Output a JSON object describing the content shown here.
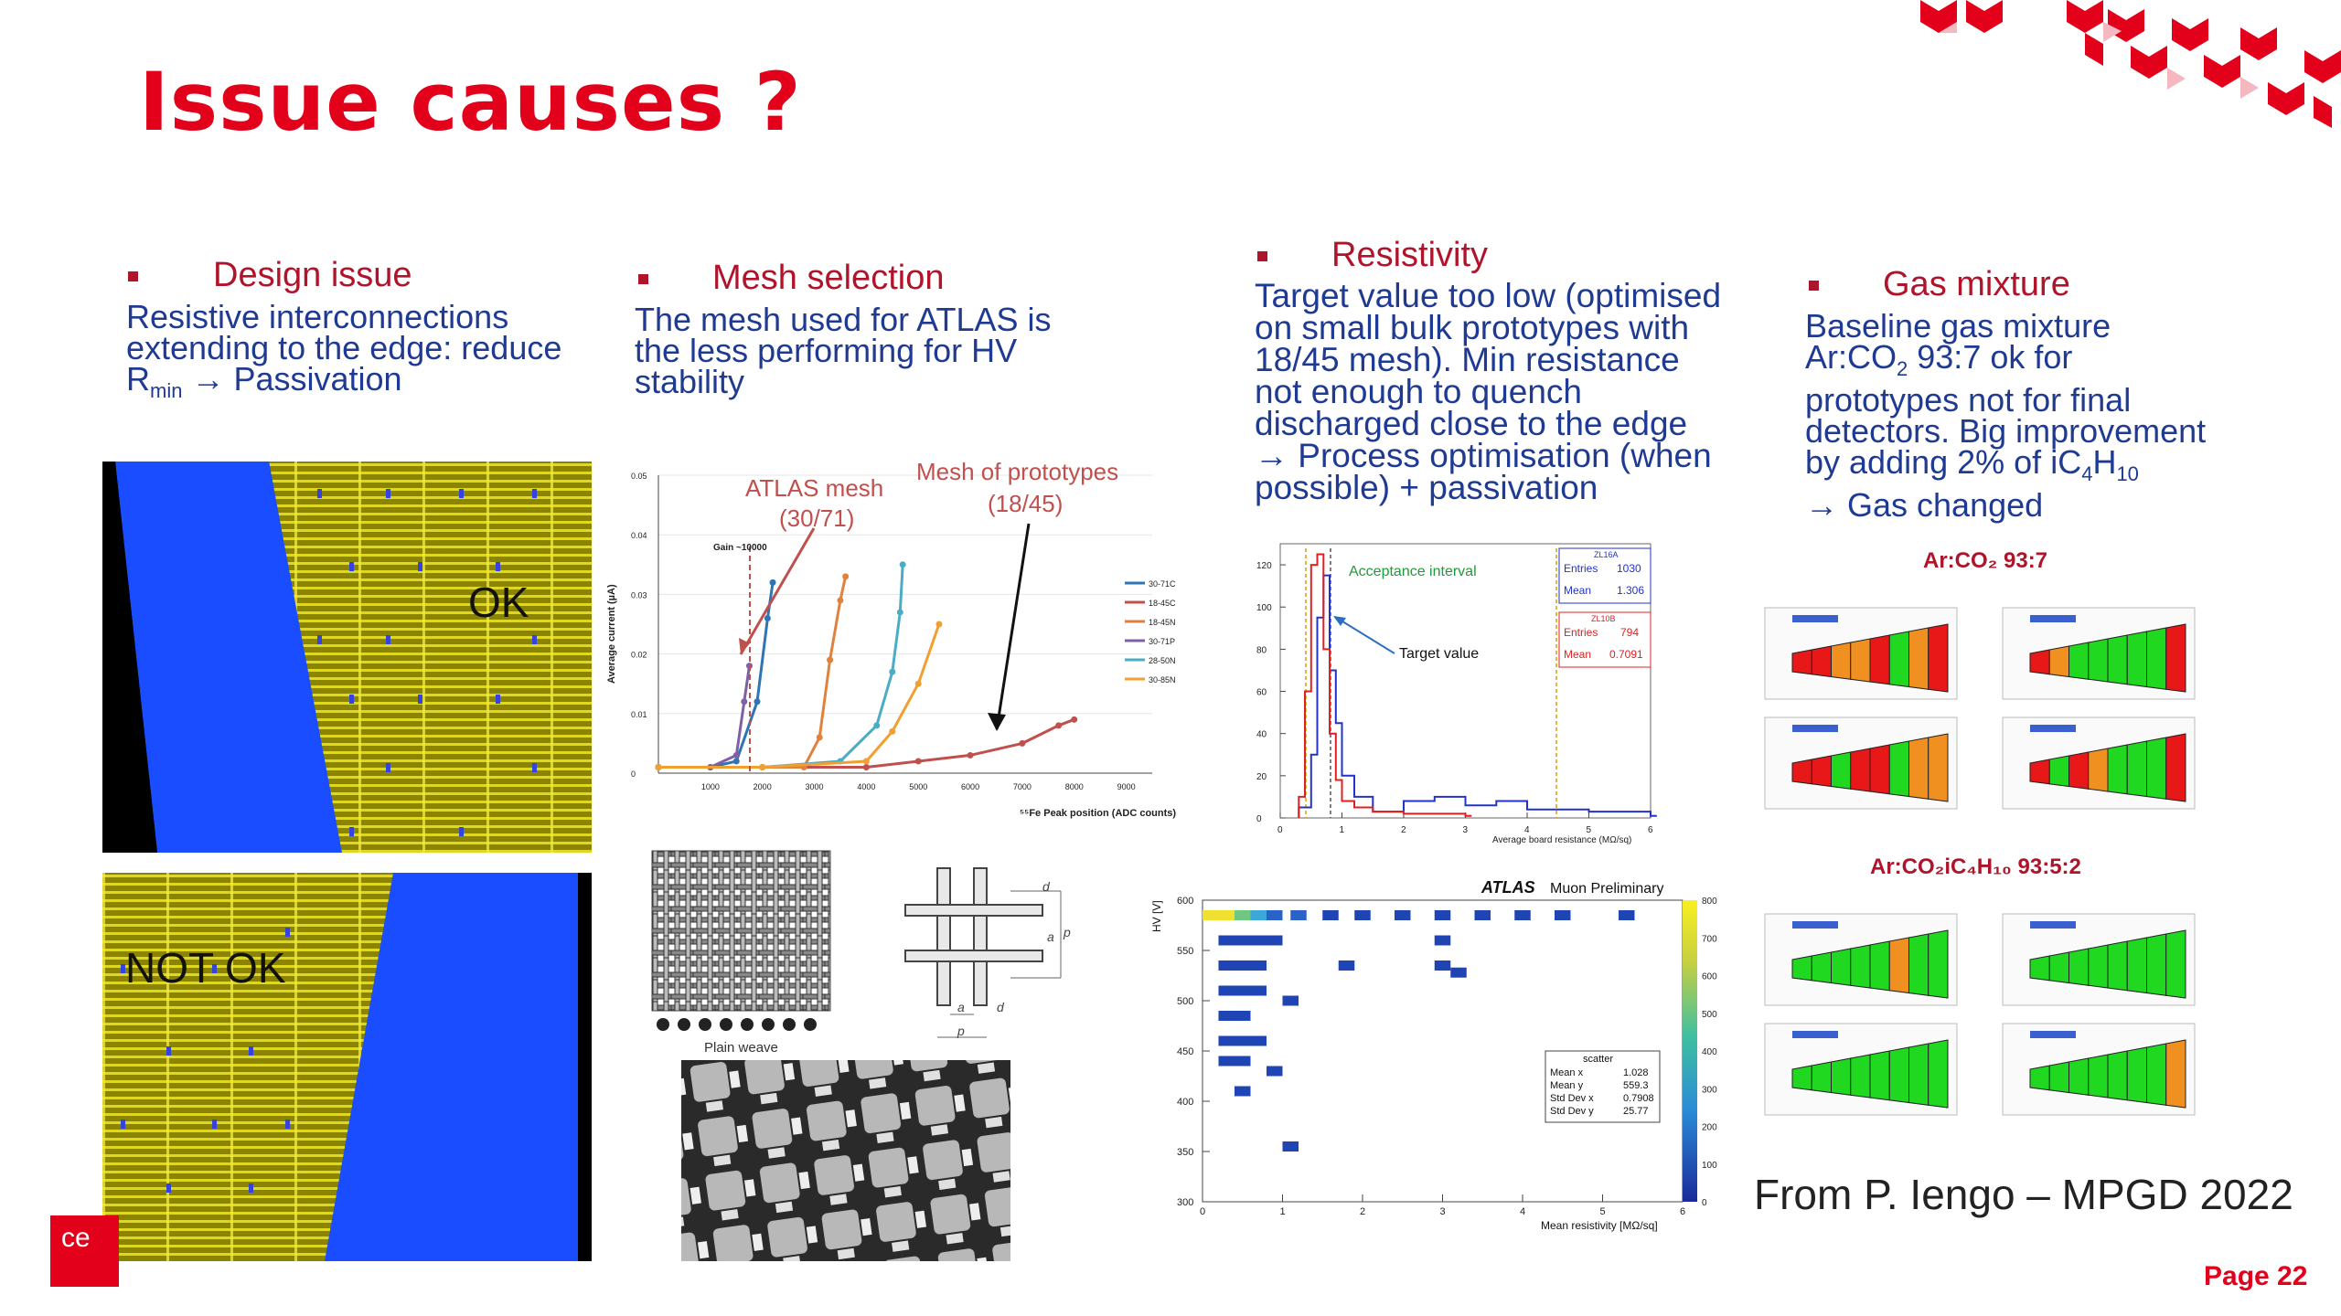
{
  "slide": {
    "title": "Issue causes ?",
    "page_label": "Page 22",
    "credit": "From P. Iengo – MPGD 2022",
    "logo_text": "ce"
  },
  "sections": {
    "design": {
      "heading": "Design issue",
      "lines": [
        "Resistive interconnections",
        "extending to the edge: reduce"
      ],
      "rmin_main": "R",
      "rmin_sub": "min",
      "rmin_tail": " → Passivation",
      "label_ok": "OK",
      "label_not_ok": "NOT OK"
    },
    "mesh": {
      "heading": "Mesh selection",
      "lines": [
        "The mesh used for ATLAS is",
        "the less performing for HV",
        "stability"
      ],
      "weave_caption": "Plain weave"
    },
    "resistivity": {
      "heading": "Resistivity",
      "lines": [
        "Target value too low (optimised",
        "on small bulk prototypes with",
        "18/45 mesh). Min resistance",
        "not enough to quench",
        "discharged close to the edge",
        "→ Process optimisation (when",
        "possible) + passivation"
      ]
    },
    "gas": {
      "heading": "Gas mixture",
      "line1": "Baseline gas mixture",
      "line2_a": "Ar:CO",
      "line2_b": "2",
      "line2_c": " 93:7 ok for",
      "line3": "prototypes not for final",
      "line4": "detectors. Big improvement",
      "line5_a": "by adding 2% of iC",
      "line5_b": "4",
      "line5_c": "H",
      "line5_d": "10",
      "line6": "→ Gas changed",
      "label_a": "Ar:CO₂ 93:7",
      "label_b": "Ar:CO₂iC₄H₁₀ 93:5:2"
    }
  },
  "figures": {
    "mesh_plot": {
      "annot_atlas": [
        "ATLAS mesh",
        "(30/71)"
      ],
      "annot_proto": [
        "Mesh of prototypes",
        "(18/45)"
      ],
      "gain_label": "Gain ~10000",
      "ylabel": "Average current (µA)",
      "xlabel": "⁵⁵Fe Peak position (ADC counts)",
      "yticks": [
        "0.05",
        "0.04",
        "0.03",
        "0.02",
        "0.01",
        "0"
      ],
      "xticks": [
        "1000",
        "2000",
        "3000",
        "4000",
        "5000",
        "6000",
        "7000",
        "8000",
        "9000"
      ],
      "legend": [
        "30-71C",
        "18-45C",
        "18-45N",
        "30-71P",
        "28-50N",
        "30-85N"
      ],
      "legend_colors": [
        "#2e75b6",
        "#c0504d",
        "#e0823d",
        "#7f5fa6",
        "#4bacc6",
        "#f0a030"
      ]
    },
    "res_hist": {
      "annot_acceptance": "Acceptance interval",
      "annot_target": "Target value",
      "stat1": {
        "name": "ZL16A",
        "entries_label": "Entries",
        "entries": "1030",
        "mean_label": "Mean",
        "mean": "1.306"
      },
      "stat2": {
        "name": "ZL10B",
        "entries_label": "Entries",
        "entries": "794",
        "mean_label": "Mean",
        "mean": "0.7091"
      },
      "yticks": [
        "120",
        "100",
        "80",
        "60",
        "40",
        "20",
        "0"
      ],
      "xticks": [
        "0",
        "1",
        "2",
        "3",
        "4",
        "5",
        "6"
      ],
      "xlabel": "Average board resistance (MΩ/sq)"
    },
    "hv_plot": {
      "title_bold": "ATLAS",
      "title_rest": " Muon Preliminary",
      "ylabel": "HV [V]",
      "xlabel": "Mean resistivity [MΩ/sq]",
      "yticks": [
        "600",
        "550",
        "500",
        "450",
        "400",
        "350",
        "300"
      ],
      "xticks": [
        "0",
        "1",
        "2",
        "3",
        "4",
        "5",
        "6"
      ],
      "zticks": [
        "800",
        "700",
        "600",
        "500",
        "400",
        "300",
        "200",
        "100",
        "0"
      ],
      "stats": {
        "name": "scatter",
        "rows": [
          [
            "Mean x",
            "1.028"
          ],
          [
            "Mean y",
            "559.3"
          ],
          [
            "Std Dev x",
            "0.7908"
          ],
          [
            "Std Dev y",
            "25.77"
          ]
        ]
      }
    }
  },
  "chart_data": [
    {
      "type": "line",
      "title": "",
      "xlabel": "⁵⁵Fe Peak position (ADC counts)",
      "ylabel": "Average current (µA)",
      "xlim": [
        0,
        9500
      ],
      "ylim": [
        0,
        0.05
      ],
      "series": [
        {
          "name": "30-71C",
          "x": [
            0,
            1000,
            1500,
            1900,
            2100,
            2200
          ],
          "y": [
            0.001,
            0.001,
            0.002,
            0.012,
            0.026,
            0.032
          ]
        },
        {
          "name": "18-45C",
          "x": [
            0,
            2000,
            4000,
            5000,
            6000,
            7000,
            7700,
            8000
          ],
          "y": [
            0.001,
            0.001,
            0.001,
            0.002,
            0.003,
            0.005,
            0.008,
            0.009
          ]
        },
        {
          "name": "18-45N",
          "x": [
            0,
            2000,
            2800,
            3100,
            3300,
            3500,
            3600
          ],
          "y": [
            0.001,
            0.001,
            0.001,
            0.006,
            0.019,
            0.029,
            0.033
          ]
        },
        {
          "name": "30-71P",
          "x": [
            0,
            1000,
            1500,
            1650,
            1750
          ],
          "y": [
            0.001,
            0.001,
            0.003,
            0.012,
            0.018
          ]
        },
        {
          "name": "28-50N",
          "x": [
            0,
            2000,
            3500,
            4200,
            4500,
            4650,
            4700
          ],
          "y": [
            0.001,
            0.001,
            0.002,
            0.008,
            0.017,
            0.027,
            0.035
          ]
        },
        {
          "name": "30-85N",
          "x": [
            0,
            2000,
            4000,
            4500,
            5000,
            5400
          ],
          "y": [
            0.001,
            0.001,
            0.002,
            0.007,
            0.015,
            0.025
          ]
        }
      ]
    },
    {
      "type": "bar",
      "title": "",
      "xlabel": "Average board resistance (MΩ/sq)",
      "ylabel": "",
      "xlim": [
        0,
        6
      ],
      "ylim": [
        0,
        130
      ],
      "series": [
        {
          "name": "ZL16A",
          "x": [
            0.3,
            0.5,
            0.6,
            0.7,
            0.8,
            0.9,
            1.0,
            1.2,
            1.5,
            2.0,
            2.5,
            3.0,
            3.5,
            4.0,
            5.0,
            6.0
          ],
          "y": [
            5,
            30,
            95,
            115,
            70,
            45,
            20,
            10,
            3,
            8,
            10,
            6,
            8,
            4,
            3,
            1
          ]
        },
        {
          "name": "ZL10B",
          "x": [
            0.3,
            0.4,
            0.5,
            0.6,
            0.7,
            0.8,
            0.9,
            1.0,
            1.2,
            1.5,
            2.0,
            2.5,
            3.0
          ],
          "y": [
            10,
            60,
            120,
            125,
            80,
            40,
            18,
            8,
            5,
            3,
            2,
            2,
            1
          ]
        }
      ]
    },
    {
      "type": "heatmap",
      "title": "ATLAS Muon Preliminary",
      "xlabel": "Mean resistivity [MΩ/sq]",
      "ylabel": "HV [V]",
      "xlim": [
        0,
        6
      ],
      "ylim": [
        300,
        600
      ],
      "zlim": [
        0,
        800
      ],
      "cells": [
        {
          "x": 0.1,
          "y": 585,
          "z": 650
        },
        {
          "x": 0.3,
          "y": 585,
          "z": 700
        },
        {
          "x": 0.5,
          "y": 585,
          "z": 500
        },
        {
          "x": 0.7,
          "y": 585,
          "z": 400
        },
        {
          "x": 0.9,
          "y": 585,
          "z": 300
        },
        {
          "x": 1.2,
          "y": 585,
          "z": 200
        },
        {
          "x": 1.6,
          "y": 585,
          "z": 150
        },
        {
          "x": 2.0,
          "y": 585,
          "z": 150
        },
        {
          "x": 2.5,
          "y": 585,
          "z": 120
        },
        {
          "x": 3.0,
          "y": 585,
          "z": 100
        },
        {
          "x": 3.5,
          "y": 585,
          "z": 100
        },
        {
          "x": 4.0,
          "y": 585,
          "z": 100
        },
        {
          "x": 4.5,
          "y": 585,
          "z": 100
        },
        {
          "x": 5.3,
          "y": 585,
          "z": 80
        },
        {
          "x": 0.3,
          "y": 560,
          "z": 150
        },
        {
          "x": 0.5,
          "y": 560,
          "z": 150
        },
        {
          "x": 0.7,
          "y": 560,
          "z": 120
        },
        {
          "x": 0.9,
          "y": 560,
          "z": 100
        },
        {
          "x": 3.0,
          "y": 560,
          "z": 80
        },
        {
          "x": 0.3,
          "y": 535,
          "z": 120
        },
        {
          "x": 0.5,
          "y": 535,
          "z": 120
        },
        {
          "x": 0.7,
          "y": 535,
          "z": 100
        },
        {
          "x": 1.8,
          "y": 535,
          "z": 80
        },
        {
          "x": 3.0,
          "y": 535,
          "z": 80
        },
        {
          "x": 3.2,
          "y": 528,
          "z": 80
        },
        {
          "x": 0.3,
          "y": 510,
          "z": 100
        },
        {
          "x": 0.5,
          "y": 510,
          "z": 100
        },
        {
          "x": 0.7,
          "y": 510,
          "z": 80
        },
        {
          "x": 0.3,
          "y": 485,
          "z": 80
        },
        {
          "x": 0.5,
          "y": 485,
          "z": 80
        },
        {
          "x": 1.1,
          "y": 500,
          "z": 80
        },
        {
          "x": 0.3,
          "y": 460,
          "z": 80
        },
        {
          "x": 0.5,
          "y": 460,
          "z": 80
        },
        {
          "x": 0.7,
          "y": 460,
          "z": 80
        },
        {
          "x": 0.3,
          "y": 440,
          "z": 80
        },
        {
          "x": 0.5,
          "y": 440,
          "z": 80
        },
        {
          "x": 0.9,
          "y": 430,
          "z": 80
        },
        {
          "x": 0.5,
          "y": 410,
          "z": 80
        },
        {
          "x": 1.1,
          "y": 355,
          "z": 80
        }
      ]
    }
  ],
  "colors": {
    "accent_red": "#e2001a",
    "heading_red": "#b0142a",
    "text_blue": "#1f3a93",
    "resistive_blue": "#1a4dff",
    "mesh_yellow": "#a8a000"
  }
}
